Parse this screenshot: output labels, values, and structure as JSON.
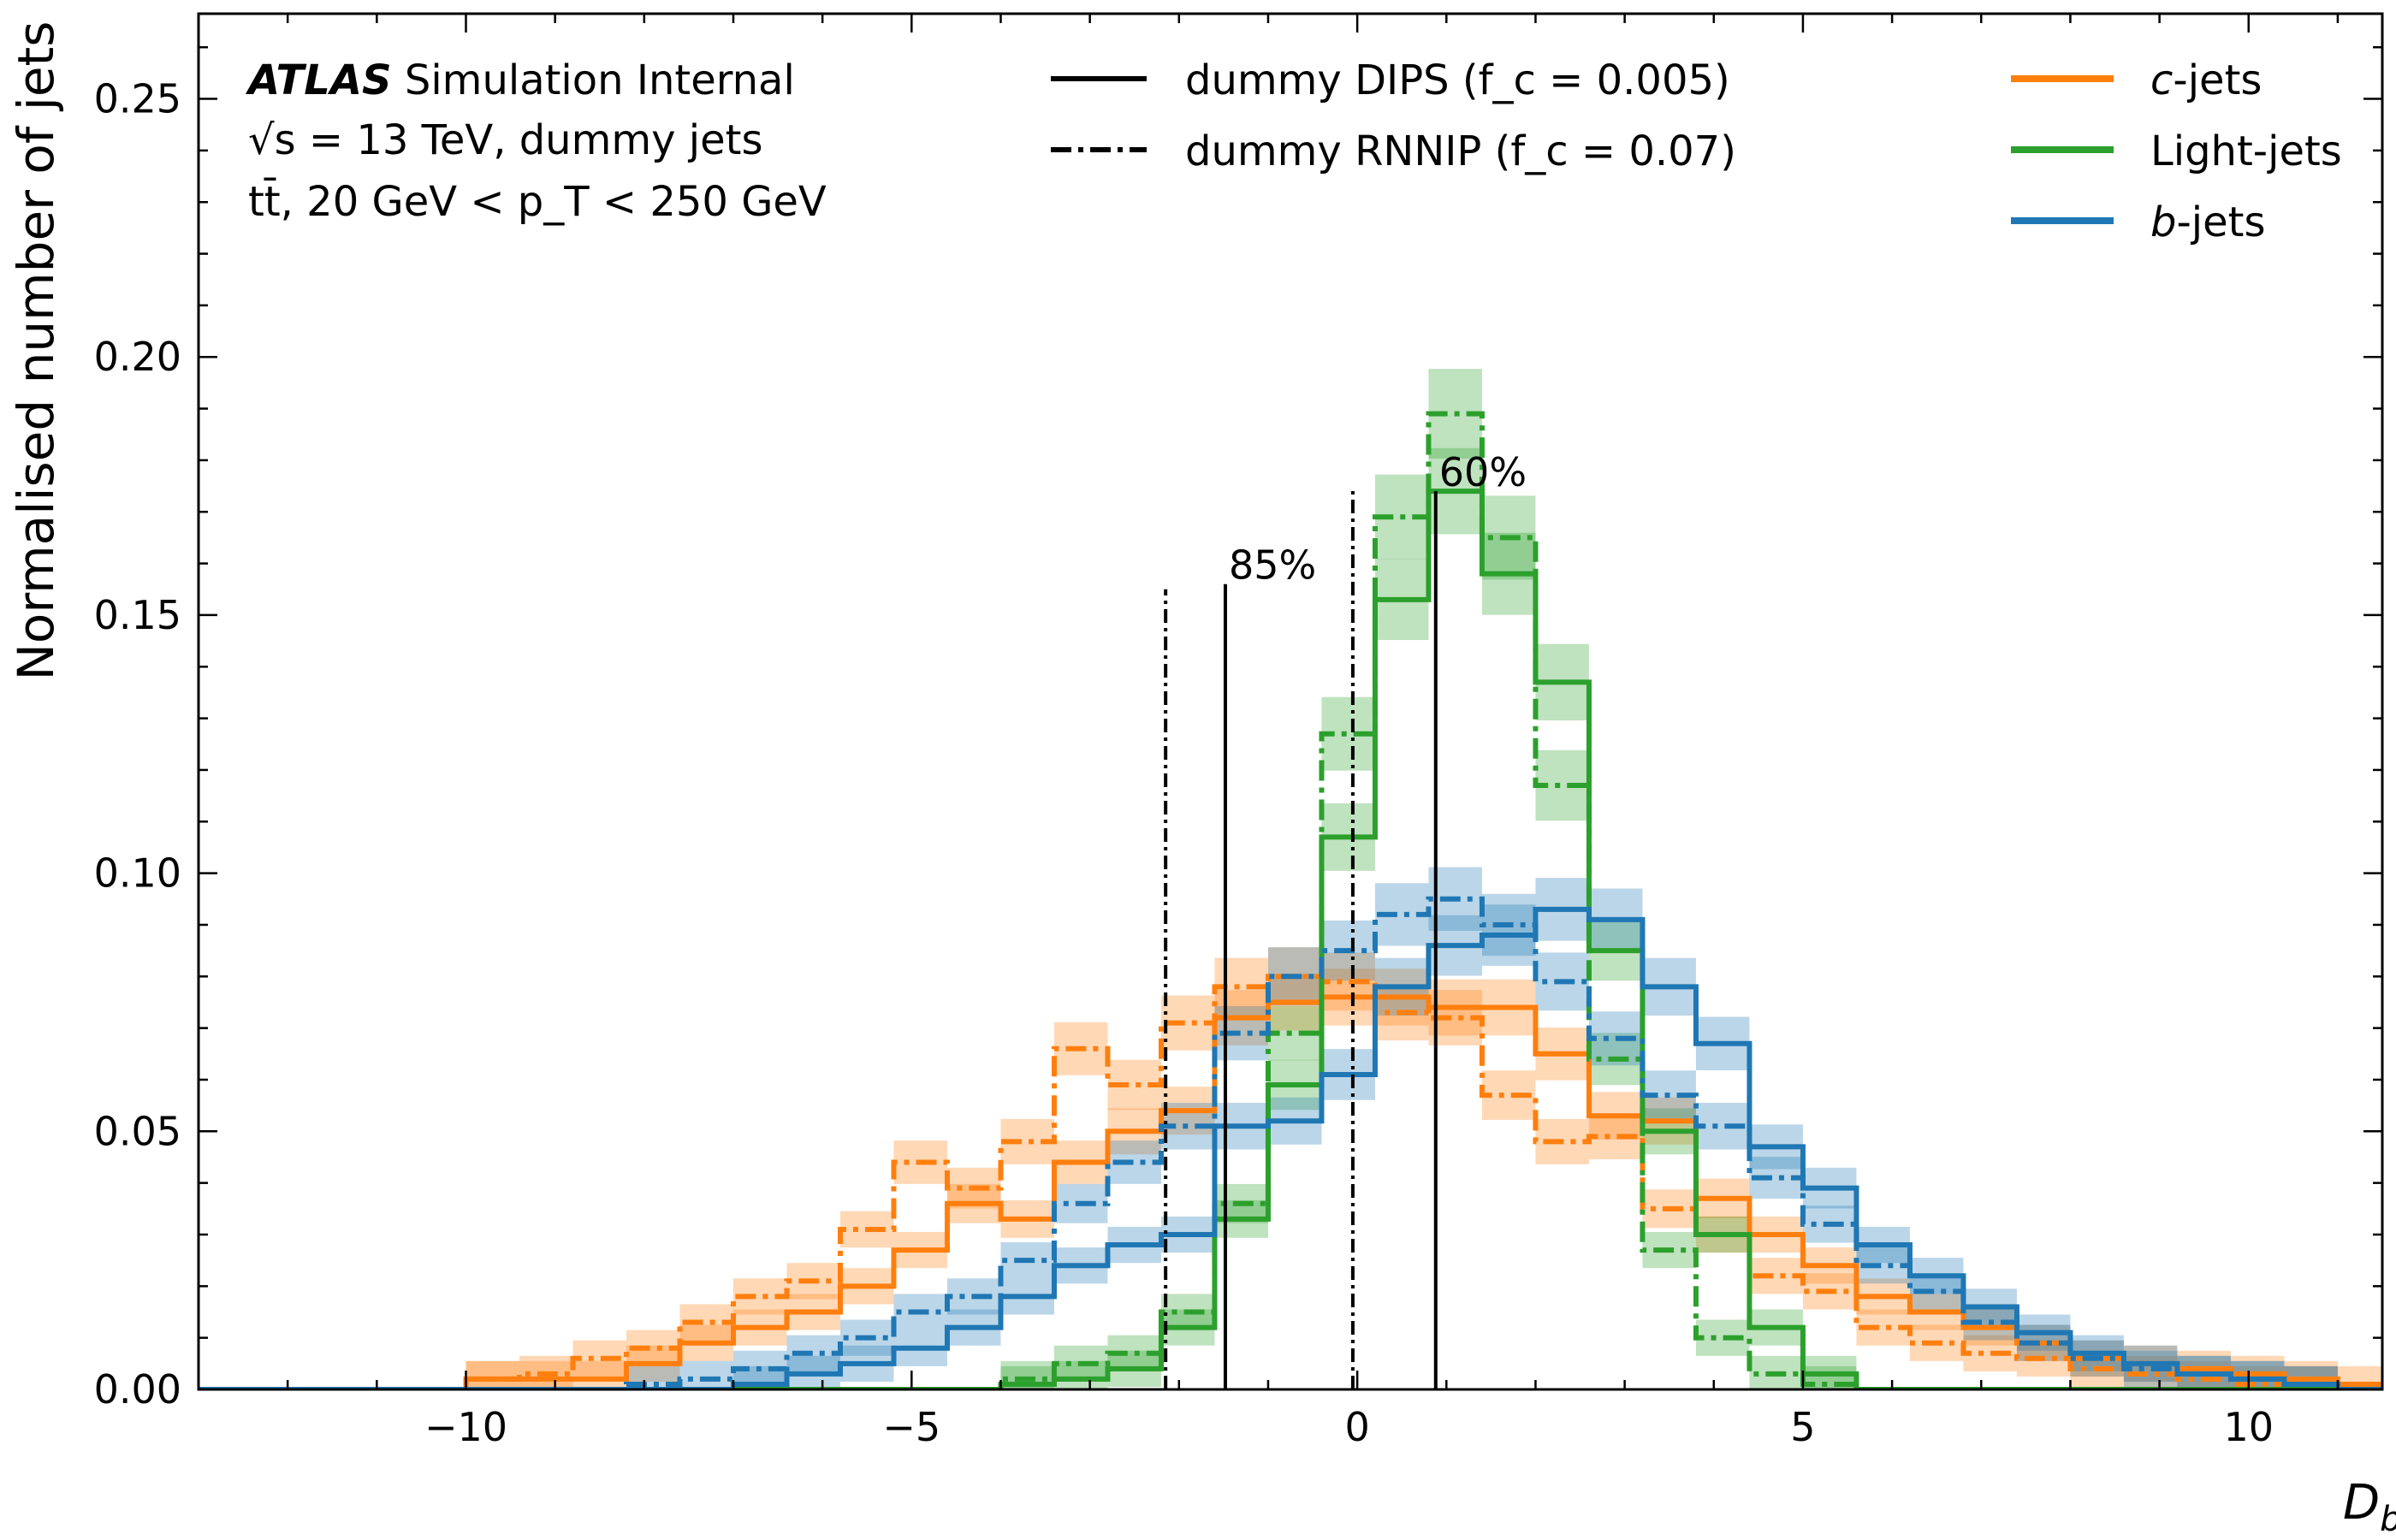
{
  "chart_data": {
    "type": "line",
    "ylabel": "Normalised number of jets",
    "xlabel": "D",
    "xlabel_sub": "b",
    "xlim": [
      -13.0,
      11.5
    ],
    "ylim": [
      0.0,
      0.2665
    ],
    "xticks": [
      -10,
      -5,
      0,
      5,
      10
    ],
    "xtick_labels": [
      "−10",
      "−5",
      "0",
      "5",
      "10"
    ],
    "yticks": [
      0.0,
      0.05,
      0.1,
      0.15,
      0.2,
      0.25
    ],
    "ytick_labels": [
      "0.00",
      "0.05",
      "0.10",
      "0.15",
      "0.20",
      "0.25"
    ],
    "bin_edges": [
      -13.0,
      -12.4,
      -11.8,
      -11.2,
      -10.6,
      -10.0,
      -9.4,
      -8.8,
      -8.2,
      -7.6,
      -7.0,
      -6.4,
      -5.8,
      -5.2,
      -4.6,
      -4.0,
      -3.4,
      -2.8,
      -2.2,
      -1.6,
      -1.0,
      -0.4,
      0.2,
      0.8,
      1.4,
      2.0,
      2.6,
      3.2,
      3.8,
      4.4,
      5.0,
      5.6,
      6.2,
      6.8,
      7.4,
      8.0,
      8.6,
      9.2,
      9.8,
      10.4,
      11.0,
      11.5
    ],
    "atlas_label": {
      "atlas": "ATLAS",
      "status": "Simulation Internal",
      "line2": "√s = 13 TeV, dummy jets",
      "line3": "tt̄, 20 GeV < p_T < 250 GeV"
    },
    "style_legend": [
      {
        "label": "dummy DIPS (f_c = 0.005)",
        "linestyle": "solid"
      },
      {
        "label": "dummy RNNIP (f_c = 0.07)",
        "linestyle": "dashdot"
      }
    ],
    "series": [
      {
        "name": "c-jets",
        "tagger": "dummy DIPS",
        "color": "#ff7f0e",
        "linestyle": "solid",
        "values": [
          0,
          0,
          0,
          0,
          0,
          0.002,
          0.002,
          0.002,
          0.005,
          0.009,
          0.012,
          0.015,
          0.02,
          0.027,
          0.036,
          0.033,
          0.044,
          0.05,
          0.054,
          0.072,
          0.075,
          0.076,
          0.076,
          0.074,
          0.074,
          0.065,
          0.053,
          0.052,
          0.037,
          0.03,
          0.024,
          0.018,
          0.015,
          0.012,
          0.009,
          0.006,
          0.005,
          0.004,
          0.003,
          0.002,
          0.001
        ]
      },
      {
        "name": "c-jets",
        "tagger": "dummy RNNIP",
        "color": "#ff7f0e",
        "linestyle": "dashdot",
        "values": [
          0,
          0,
          0,
          0,
          0,
          0.002,
          0.003,
          0.006,
          0.008,
          0.013,
          0.018,
          0.021,
          0.031,
          0.044,
          0.039,
          0.048,
          0.066,
          0.059,
          0.071,
          0.078,
          0.08,
          0.079,
          0.073,
          0.072,
          0.057,
          0.048,
          0.049,
          0.035,
          0.03,
          0.022,
          0.019,
          0.012,
          0.009,
          0.007,
          0.006,
          0.004,
          0.003,
          0.002,
          0.001,
          0.001,
          0
        ]
      },
      {
        "name": "Light-jets",
        "tagger": "dummy DIPS",
        "color": "#2ca02c",
        "linestyle": "solid",
        "values": [
          0,
          0,
          0,
          0,
          0,
          0,
          0,
          0,
          0,
          0,
          0,
          0,
          0,
          0,
          0,
          0.001,
          0.002,
          0.004,
          0.012,
          0.033,
          0.059,
          0.107,
          0.153,
          0.174,
          0.158,
          0.137,
          0.085,
          0.05,
          0.03,
          0.012,
          0.003,
          0,
          0,
          0,
          0,
          0,
          0,
          0,
          0,
          0,
          0
        ]
      },
      {
        "name": "Light-jets",
        "tagger": "dummy RNNIP",
        "color": "#2ca02c",
        "linestyle": "dashdot",
        "values": [
          0,
          0,
          0,
          0,
          0,
          0,
          0,
          0,
          0,
          0,
          0,
          0,
          0,
          0,
          0,
          0.002,
          0.005,
          0.007,
          0.015,
          0.036,
          0.069,
          0.127,
          0.169,
          0.189,
          0.165,
          0.117,
          0.064,
          0.027,
          0.01,
          0.003,
          0.001,
          0,
          0,
          0,
          0,
          0,
          0,
          0,
          0,
          0,
          0
        ]
      },
      {
        "name": "b-jets",
        "tagger": "dummy DIPS",
        "color": "#1f77b4",
        "linestyle": "solid",
        "values": [
          0,
          0,
          0,
          0,
          0,
          0,
          0,
          0,
          0,
          0,
          0.001,
          0.003,
          0.005,
          0.008,
          0.012,
          0.018,
          0.024,
          0.028,
          0.03,
          0.051,
          0.052,
          0.061,
          0.078,
          0.086,
          0.088,
          0.093,
          0.091,
          0.078,
          0.067,
          0.047,
          0.039,
          0.028,
          0.022,
          0.016,
          0.011,
          0.007,
          0.005,
          0.003,
          0.002,
          0.001,
          0
        ]
      },
      {
        "name": "b-jets",
        "tagger": "dummy RNNIP",
        "color": "#1f77b4",
        "linestyle": "dashdot",
        "values": [
          0,
          0,
          0,
          0,
          0,
          0,
          0,
          0,
          0.001,
          0.002,
          0.004,
          0.007,
          0.01,
          0.015,
          0.018,
          0.025,
          0.036,
          0.044,
          0.051,
          0.069,
          0.08,
          0.085,
          0.092,
          0.095,
          0.09,
          0.079,
          0.068,
          0.057,
          0.051,
          0.041,
          0.032,
          0.024,
          0.019,
          0.013,
          0.009,
          0.006,
          0.004,
          0.003,
          0.002,
          0.001,
          0
        ]
      }
    ],
    "legend": [
      {
        "label": "c",
        "suffix": "-jets",
        "italic_prefix": true,
        "color": "#ff7f0e"
      },
      {
        "label": "Light-jets",
        "suffix": "",
        "italic_prefix": false,
        "color": "#2ca02c"
      },
      {
        "label": "b",
        "suffix": "-jets",
        "italic_prefix": true,
        "color": "#1f77b4"
      }
    ],
    "wp_lines": [
      {
        "label": "85%",
        "tagger": "dummy DIPS",
        "linestyle": "solid",
        "x": -1.48,
        "ymax": 0.156
      },
      {
        "label": "",
        "tagger": "dummy RNNIP",
        "linestyle": "dashdot",
        "x": -2.15,
        "ymax": 0.155
      },
      {
        "label": "60%",
        "tagger": "dummy DIPS",
        "linestyle": "solid",
        "x": 0.88,
        "ymax": 0.174
      },
      {
        "label": "",
        "tagger": "dummy RNNIP",
        "linestyle": "dashdot",
        "x": -0.05,
        "ymax": 0.175
      }
    ],
    "grid": false,
    "legend_placement": "top"
  }
}
